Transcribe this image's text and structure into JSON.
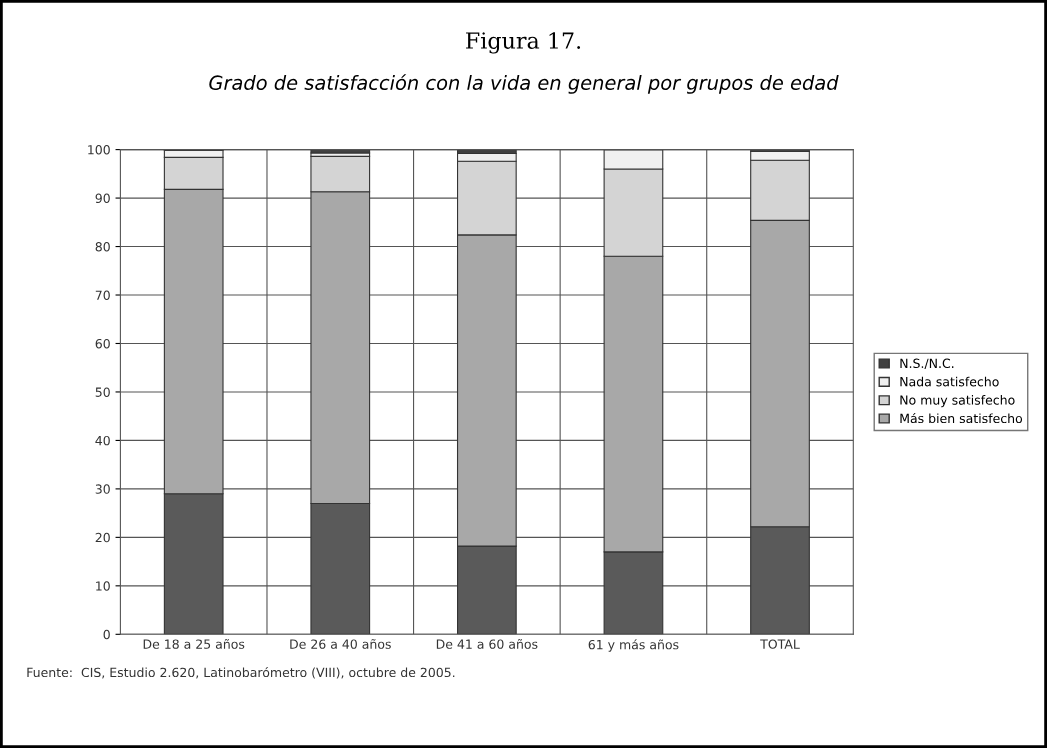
{
  "chart_data": {
    "type": "bar",
    "title": "Figura 17.",
    "subtitle": "Grado de satisfacción con la vida en general por grupos de edad",
    "categories": [
      "De 18 a 25 años",
      "De 26 a 40 años",
      "De 41 a 60 años",
      "61 y más años",
      "TOTAL"
    ],
    "stacked": true,
    "series": [
      {
        "color": "#5a5a5a",
        "values": [
          29,
          27,
          18.2,
          17,
          22.2
        ]
      },
      {
        "name": "Más bien satisfecho",
        "color": "#a8a8a8",
        "values": [
          62.8,
          64.3,
          64.2,
          61,
          63.2
        ]
      },
      {
        "name": "No muy satisfecho",
        "color": "#d4d4d4",
        "values": [
          6.6,
          7.3,
          15.2,
          18,
          12.4
        ]
      },
      {
        "name": "Nada satisfecho",
        "color": "#f0f0f0",
        "values": [
          1.4,
          0.7,
          1.6,
          4,
          1.8
        ]
      },
      {
        "name": "N.S./N.C.",
        "color": "#404040",
        "values": [
          0.2,
          0.7,
          0.8,
          0,
          0.4
        ]
      }
    ],
    "ylim": [
      0,
      100
    ],
    "yticks": [
      0,
      10,
      20,
      30,
      40,
      50,
      60,
      70,
      80,
      90,
      100
    ],
    "grid": true,
    "legend": "right",
    "annotations": [
      "Fuente:  CIS, Estudio 2.620, Latinobarómetro (VIII), octubre de 2005."
    ]
  }
}
